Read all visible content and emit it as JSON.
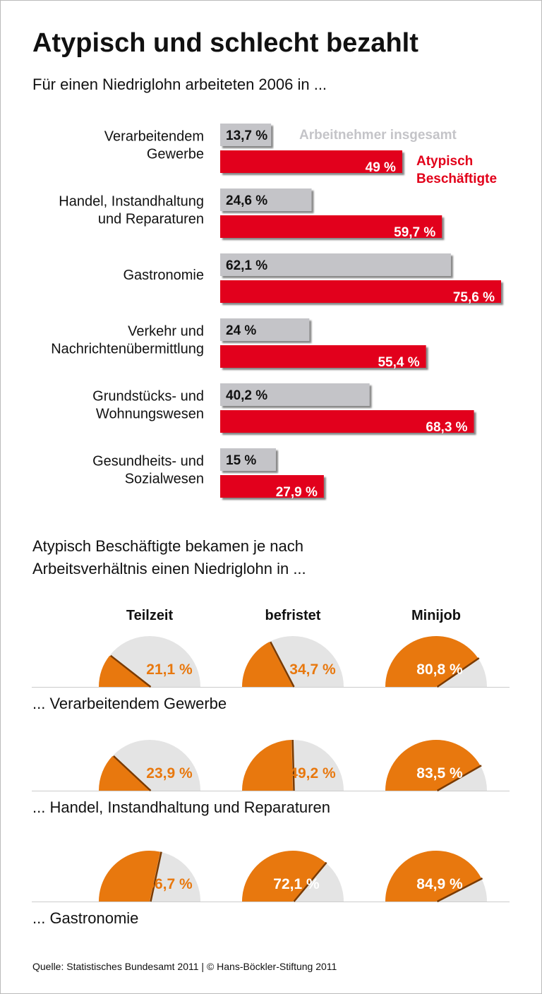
{
  "chart_data": [
    {
      "type": "hbar",
      "title": "Atypisch und schlecht bezahlt",
      "subtitle": "Für einen Niedriglohn arbeiteten 2006 in ...",
      "categories": [
        "Verarbeitendem\nGewerbe",
        "Handel, Instandhaltung\nund Reparaturen",
        "Gastronomie",
        "Verkehr und\nNachrichtenübermittlung",
        "Grundstücks- und\nWohnungswesen",
        "Gesundheits- und\nSozialwesen"
      ],
      "series": [
        {
          "name": "Arbeitnehmer insgesamt",
          "color": "#c4c4c8",
          "label_color": "#111111",
          "values": [
            13.7,
            24.6,
            62.1,
            24,
            40.2,
            15
          ],
          "value_labels": [
            "13,7 %",
            "24,6 %",
            "62,1 %",
            "24 %",
            "40,2 %",
            "15 %"
          ]
        },
        {
          "name": "Atypisch\nBeschäftigte",
          "color": "#e2001a",
          "label_color": "#ffffff",
          "values": [
            49,
            59.7,
            75.6,
            55.4,
            68.3,
            27.9
          ],
          "value_labels": [
            "49 %",
            "59,7 %",
            "75,6 %",
            "55,4 %",
            "68,3 %",
            "27,9 %"
          ]
        }
      ]
    },
    {
      "type": "gauge",
      "subtitle": "Atypisch Beschäftigte bekamen je nach\nArbeitsverhältnis einen Niedriglohn in ...",
      "columns": [
        "Teilzeit",
        "befristet",
        "Minijob"
      ],
      "ylim": [
        0,
        100
      ],
      "color": "#e8780e",
      "track_color": "#e4e4e4",
      "rows": [
        {
          "name": "... Verarbeitendem Gewerbe",
          "values": [
            21.1,
            34.7,
            80.8
          ],
          "value_labels": [
            "21,1 %",
            "34,7 %",
            "80,8 %"
          ]
        },
        {
          "name": "... Handel, Instandhaltung und Reparaturen",
          "values": [
            23.9,
            49.2,
            83.5
          ],
          "value_labels": [
            "23,9 %",
            "49,2 %",
            "83,5 %"
          ]
        },
        {
          "name": "... Gastronomie",
          "values": [
            56.7,
            72.1,
            84.9
          ],
          "value_labels": [
            "56,7 %",
            "72,1 %",
            "84,9 %"
          ]
        }
      ],
      "source": "Quelle: Statistisches Bundesamt 2011 | © Hans-Böckler-Stiftung 2011"
    }
  ]
}
